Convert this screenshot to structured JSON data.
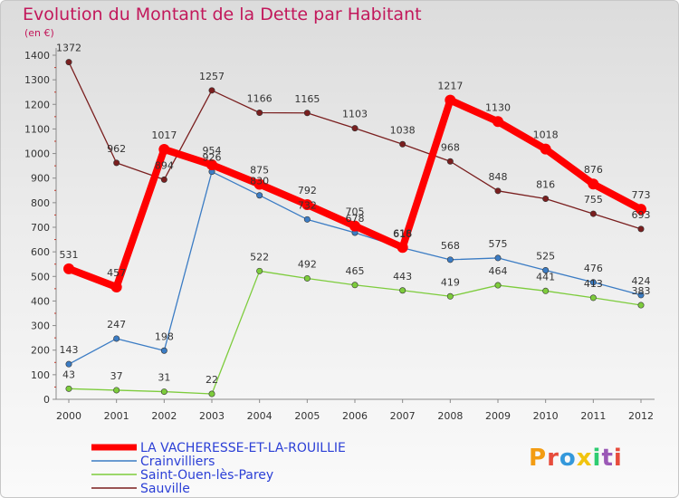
{
  "header": {
    "title": "Evolution du Montant de la Dette par Habitant",
    "unit": "(en €)"
  },
  "logo": {
    "text": "Proxiti",
    "colors": [
      "#f39c12",
      "#e74c3c",
      "#3498db",
      "#f1c40f",
      "#2ecc71",
      "#9b59b6",
      "#e74c3c"
    ]
  },
  "chart_data": {
    "type": "line",
    "title": "Evolution du Montant de la Dette par Habitant",
    "ylabel": "(en €)",
    "xlabel": "",
    "ylim": [
      0,
      1400
    ],
    "ytick_step": 100,
    "grid": false,
    "legend_position": "bottom-left",
    "x": [
      "2000",
      "2001",
      "2002",
      "2003",
      "2004",
      "2005",
      "2006",
      "2007",
      "2008",
      "2009",
      "2010",
      "2011",
      "2012"
    ],
    "series": [
      {
        "name": "LA VACHERESSE-ET-LA-ROUILLIE",
        "color": "#ff0000",
        "values": [
          531,
          457,
          1017,
          954,
          875,
          792,
          705,
          618,
          1217,
          1130,
          1018,
          876,
          773
        ]
      },
      {
        "name": "Crainvilliers",
        "color": "#3b7cc4",
        "values": [
          143,
          247,
          198,
          926,
          830,
          732,
          678,
          616,
          568,
          575,
          525,
          476,
          424
        ]
      },
      {
        "name": "Saint-Ouen-lès-Parey",
        "color": "#7dcc3c",
        "values": [
          43,
          37,
          31,
          22,
          522,
          492,
          465,
          443,
          419,
          464,
          441,
          413,
          383
        ]
      },
      {
        "name": "Sauville",
        "color": "#7a1f1f",
        "values": [
          1372,
          962,
          894,
          1257,
          1166,
          1165,
          1103,
          1038,
          968,
          848,
          816,
          755,
          693
        ]
      }
    ]
  }
}
